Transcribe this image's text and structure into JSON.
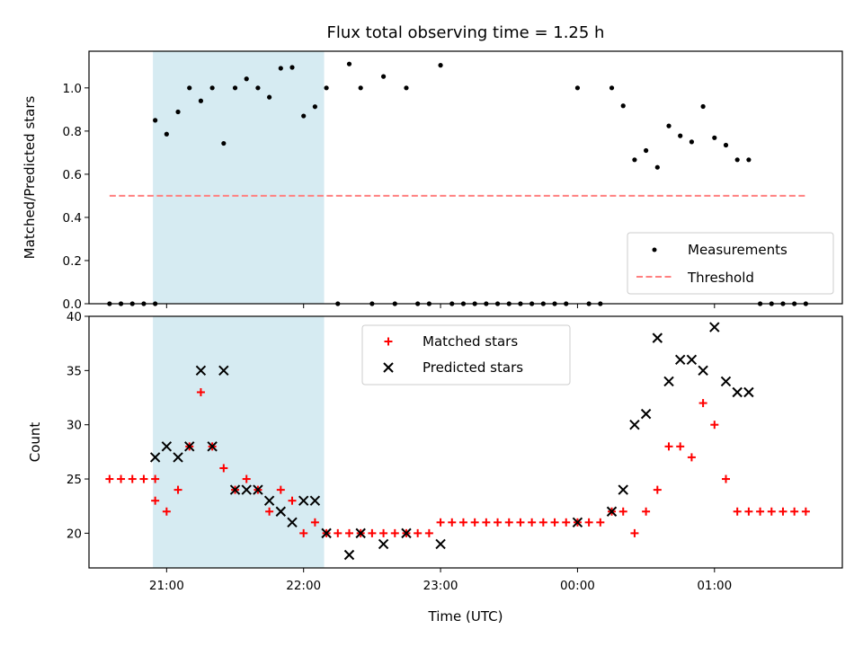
{
  "chart_data": [
    {
      "type": "scatter",
      "title": "Flux total observing time = 1.25 h",
      "xlabel": "",
      "ylabel": "Matched/Predicted stars",
      "xlim": [
        "20:26",
        "01:56"
      ],
      "ylim": [
        0,
        1.17
      ],
      "yticks": [
        "0.0",
        "0.2",
        "0.4",
        "0.6",
        "0.8",
        "1.0"
      ],
      "highlight_span": [
        "20:54",
        "22:09"
      ],
      "highlight_color": "#add8e6",
      "grid": false,
      "legend_position": "lower right",
      "series": [
        {
          "name": "Measurements",
          "marker": "dot",
          "color": "#000000",
          "points": [
            [
              "20:35",
              0.0
            ],
            [
              "20:40",
              0.0
            ],
            [
              "20:45",
              0.0
            ],
            [
              "20:50",
              0.0
            ],
            [
              "20:55",
              0.0
            ],
            [
              "20:55",
              0.85
            ],
            [
              "21:00",
              0.786
            ],
            [
              "21:05",
              0.889
            ],
            [
              "21:10",
              1.0
            ],
            [
              "21:15",
              0.94
            ],
            [
              "21:20",
              1.0
            ],
            [
              "21:25",
              0.743
            ],
            [
              "21:30",
              1.0
            ],
            [
              "21:35",
              1.042
            ],
            [
              "21:40",
              1.0
            ],
            [
              "21:45",
              0.957
            ],
            [
              "21:50",
              1.091
            ],
            [
              "21:55",
              1.095
            ],
            [
              "22:00",
              0.87
            ],
            [
              "22:05",
              0.913
            ],
            [
              "22:10",
              1.0
            ],
            [
              "22:15",
              0.0
            ],
            [
              "22:20",
              1.111
            ],
            [
              "22:25",
              1.0
            ],
            [
              "22:30",
              0.0
            ],
            [
              "22:35",
              1.053
            ],
            [
              "22:40",
              0.0
            ],
            [
              "22:45",
              1.0
            ],
            [
              "22:50",
              0.0
            ],
            [
              "22:55",
              0.0
            ],
            [
              "23:00",
              1.105
            ],
            [
              "23:05",
              0.0
            ],
            [
              "23:10",
              0.0
            ],
            [
              "23:15",
              0.0
            ],
            [
              "23:20",
              0.0
            ],
            [
              "23:25",
              0.0
            ],
            [
              "23:30",
              0.0
            ],
            [
              "23:35",
              0.0
            ],
            [
              "23:40",
              0.0
            ],
            [
              "23:45",
              0.0
            ],
            [
              "23:50",
              0.0
            ],
            [
              "23:55",
              0.0
            ],
            [
              "00:00",
              1.0
            ],
            [
              "00:05",
              0.0
            ],
            [
              "00:10",
              0.0
            ],
            [
              "00:15",
              1.0
            ],
            [
              "00:20",
              0.917
            ],
            [
              "00:25",
              0.667
            ],
            [
              "00:30",
              0.71
            ],
            [
              "00:35",
              0.632
            ],
            [
              "00:40",
              0.824
            ],
            [
              "00:45",
              0.778
            ],
            [
              "00:50",
              0.75
            ],
            [
              "00:55",
              0.914
            ],
            [
              "01:00",
              0.769
            ],
            [
              "01:05",
              0.735
            ],
            [
              "01:10",
              0.667
            ],
            [
              "01:15",
              0.667
            ],
            [
              "01:20",
              0.0
            ],
            [
              "01:25",
              0.0
            ],
            [
              "01:30",
              0.0
            ],
            [
              "01:35",
              0.0
            ],
            [
              "01:40",
              0.0
            ]
          ]
        },
        {
          "name": "Threshold",
          "marker": "dashed-line",
          "color": "#ff7f7f",
          "points": [
            [
              "20:35",
              0.5
            ],
            [
              "01:40",
              0.5
            ]
          ]
        }
      ]
    },
    {
      "type": "scatter",
      "title": "",
      "xlabel": "Time (UTC)",
      "ylabel": "Count",
      "xlim": [
        "20:26",
        "01:56"
      ],
      "ylim": [
        16.8,
        40
      ],
      "yticks": [
        "20",
        "25",
        "30",
        "35",
        "40"
      ],
      "xticks": [
        "21:00",
        "22:00",
        "23:00",
        "00:00",
        "01:00"
      ],
      "highlight_span": [
        "20:54",
        "22:09"
      ],
      "highlight_color": "#add8e6",
      "grid": false,
      "legend_position": "upper center",
      "series": [
        {
          "name": "Matched stars",
          "marker": "plus",
          "color": "#ff0000",
          "points": [
            [
              "20:35",
              25
            ],
            [
              "20:40",
              25
            ],
            [
              "20:45",
              25
            ],
            [
              "20:50",
              25
            ],
            [
              "20:55",
              25
            ],
            [
              "20:55",
              23
            ],
            [
              "21:00",
              22
            ],
            [
              "21:05",
              24
            ],
            [
              "21:10",
              28
            ],
            [
              "21:15",
              33
            ],
            [
              "21:20",
              28
            ],
            [
              "21:25",
              26
            ],
            [
              "21:30",
              24
            ],
            [
              "21:35",
              25
            ],
            [
              "21:40",
              24
            ],
            [
              "21:45",
              22
            ],
            [
              "21:50",
              24
            ],
            [
              "21:55",
              23
            ],
            [
              "22:00",
              20
            ],
            [
              "22:05",
              21
            ],
            [
              "22:10",
              20
            ],
            [
              "22:15",
              20
            ],
            [
              "22:20",
              20
            ],
            [
              "22:25",
              20
            ],
            [
              "22:30",
              20
            ],
            [
              "22:35",
              20
            ],
            [
              "22:40",
              20
            ],
            [
              "22:45",
              20
            ],
            [
              "22:50",
              20
            ],
            [
              "22:55",
              20
            ],
            [
              "23:00",
              21
            ],
            [
              "23:05",
              21
            ],
            [
              "23:10",
              21
            ],
            [
              "23:15",
              21
            ],
            [
              "23:20",
              21
            ],
            [
              "23:25",
              21
            ],
            [
              "23:30",
              21
            ],
            [
              "23:35",
              21
            ],
            [
              "23:40",
              21
            ],
            [
              "23:45",
              21
            ],
            [
              "23:50",
              21
            ],
            [
              "23:55",
              21
            ],
            [
              "00:00",
              21
            ],
            [
              "00:05",
              21
            ],
            [
              "00:10",
              21
            ],
            [
              "00:15",
              22
            ],
            [
              "00:20",
              22
            ],
            [
              "00:25",
              20
            ],
            [
              "00:30",
              22
            ],
            [
              "00:35",
              24
            ],
            [
              "00:40",
              28
            ],
            [
              "00:45",
              28
            ],
            [
              "00:50",
              27
            ],
            [
              "00:55",
              32
            ],
            [
              "01:00",
              30
            ],
            [
              "01:05",
              25
            ],
            [
              "01:10",
              22
            ],
            [
              "01:15",
              22
            ],
            [
              "01:20",
              22
            ],
            [
              "01:25",
              22
            ],
            [
              "01:30",
              22
            ],
            [
              "01:35",
              22
            ],
            [
              "01:40",
              22
            ]
          ]
        },
        {
          "name": "Predicted stars",
          "marker": "x",
          "color": "#000000",
          "points": [
            [
              "20:55",
              27
            ],
            [
              "21:00",
              28
            ],
            [
              "21:05",
              27
            ],
            [
              "21:10",
              28
            ],
            [
              "21:15",
              35
            ],
            [
              "21:20",
              28
            ],
            [
              "21:25",
              35
            ],
            [
              "21:30",
              24
            ],
            [
              "21:35",
              24
            ],
            [
              "21:40",
              24
            ],
            [
              "21:45",
              23
            ],
            [
              "21:50",
              22
            ],
            [
              "21:55",
              21
            ],
            [
              "22:00",
              23
            ],
            [
              "22:05",
              23
            ],
            [
              "22:10",
              20
            ],
            [
              "22:20",
              18
            ],
            [
              "22:25",
              20
            ],
            [
              "22:35",
              19
            ],
            [
              "22:45",
              20
            ],
            [
              "23:00",
              19
            ],
            [
              "00:00",
              21
            ],
            [
              "00:15",
              22
            ],
            [
              "00:20",
              24
            ],
            [
              "00:25",
              30
            ],
            [
              "00:30",
              31
            ],
            [
              "00:35",
              38
            ],
            [
              "00:40",
              34
            ],
            [
              "00:45",
              36
            ],
            [
              "00:50",
              36
            ],
            [
              "00:55",
              35
            ],
            [
              "01:00",
              39
            ],
            [
              "01:05",
              34
            ],
            [
              "01:10",
              33
            ],
            [
              "01:15",
              33
            ]
          ]
        }
      ]
    }
  ]
}
